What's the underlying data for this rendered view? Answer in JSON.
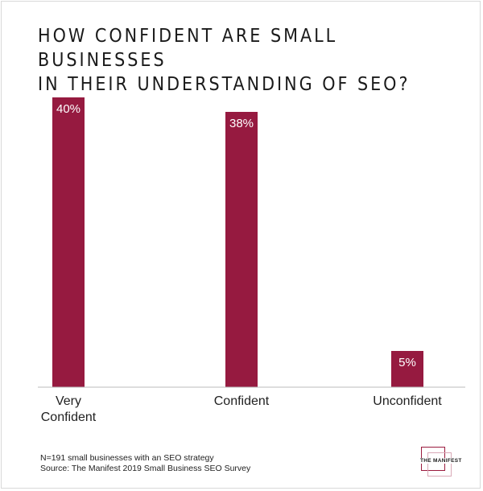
{
  "chart_data": {
    "type": "bar",
    "title_lines": [
      "HOW CONFIDENT ARE SMALL BUSINESSES",
      "IN THEIR UNDERSTANDING OF SEO?"
    ],
    "categories": [
      [
        "Very",
        "Confident"
      ],
      [
        "Confident"
      ],
      [
        "Unconfident"
      ]
    ],
    "values": [
      40,
      38,
      5
    ],
    "data_labels": [
      "40%",
      "38%",
      "5%"
    ],
    "ylim": [
      0,
      40
    ],
    "grid": false,
    "colors": {
      "bar": "#961a40",
      "bar_label": "#ffffff",
      "axis": "#bbbbbb"
    }
  },
  "footnote": {
    "line1": "N=191 small businesses with an SEO strategy",
    "line2": "Source: The Manifest 2019 Small Business SEO Survey"
  },
  "logo": {
    "text": "THE MANIFEST"
  }
}
